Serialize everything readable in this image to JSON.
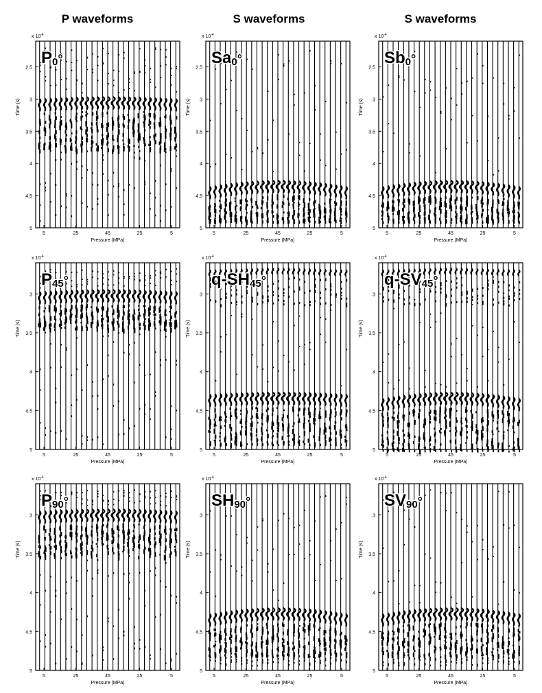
{
  "column_titles": [
    "P waveforms",
    "S waveforms",
    "S waveforms"
  ],
  "colors": {
    "trace": "#000000",
    "background": "#ffffff"
  },
  "chart_data": [
    {
      "type": "line",
      "panel": "P0",
      "label_main": "P",
      "label_sub": "0",
      "label_deg": "°",
      "exponent": "x 10",
      "exponent_power": "-4",
      "xlabel": "Pressure (MPa)",
      "ylabel": "Time (s)",
      "x_tick_labels": [
        "5",
        "25",
        "45",
        "25",
        "5"
      ],
      "ylim": [
        2.1,
        5.0
      ],
      "y_ticks": [
        2.5,
        3.0,
        3.5,
        4.0,
        4.5,
        5.0
      ],
      "y_tick_labels": [
        "2.5",
        "3",
        "3.5",
        "4",
        "4.5",
        "5"
      ],
      "traces": 27,
      "arrival": 3.03,
      "arrival_shape": "flat",
      "coda": 0.75,
      "precursor": false,
      "noise": 0.35
    },
    {
      "type": "line",
      "panel": "Sa0",
      "label_main": "Sa",
      "label_sub": "0",
      "label_deg": "°",
      "exponent": "x 10",
      "exponent_power": "-4",
      "xlabel": "Pressure (MPa)",
      "ylabel": "Time (s)",
      "x_tick_labels": [
        "5",
        "25",
        "45",
        "25",
        "5"
      ],
      "ylim": [
        2.1,
        5.0
      ],
      "y_ticks": [
        2.5,
        3.0,
        3.5,
        4.0,
        4.5,
        5.0
      ],
      "y_tick_labels": [
        "2.5",
        "3",
        "3.5",
        "4",
        "4.5",
        "5"
      ],
      "traces": 27,
      "arrival": 4.33,
      "arrival_shape": "arched",
      "coda": 0.55,
      "precursor": false,
      "noise": 0.25
    },
    {
      "type": "line",
      "panel": "Sb0",
      "label_main": "Sb",
      "label_sub": "0",
      "label_deg": "°",
      "exponent": "x 10",
      "exponent_power": "-4",
      "xlabel": "Pressure (MPa)",
      "ylabel": "Time (s)",
      "x_tick_labels": [
        "5",
        "25",
        "45",
        "25",
        "5"
      ],
      "ylim": [
        2.1,
        5.0
      ],
      "y_ticks": [
        2.5,
        3.0,
        3.5,
        4.0,
        4.5,
        5.0
      ],
      "y_tick_labels": [
        "2.5",
        "3",
        "3.5",
        "4",
        "4.5",
        "5"
      ],
      "traces": 27,
      "arrival": 4.33,
      "arrival_shape": "arched",
      "coda": 0.55,
      "precursor": false,
      "noise": 0.25
    },
    {
      "type": "line",
      "panel": "P45",
      "label_main": "P",
      "label_sub": "45",
      "label_deg": "°",
      "exponent": "x 10",
      "exponent_power": "-4",
      "xlabel": "Pressure (MPa)",
      "ylabel": "Time (s)",
      "x_tick_labels": [
        "5",
        "25",
        "45",
        "25",
        "5"
      ],
      "ylim": [
        2.6,
        5.0
      ],
      "y_ticks": [
        3.0,
        3.5,
        4.0,
        4.5,
        5.0
      ],
      "y_tick_labels": [
        "3",
        "3.5",
        "4",
        "4.5",
        "5"
      ],
      "traces": 27,
      "arrival": 3.0,
      "arrival_shape": "flat",
      "coda": 0.45,
      "precursor": false,
      "noise": 0.35
    },
    {
      "type": "line",
      "panel": "qSH45",
      "label_main": "q-SH",
      "label_sub": "45",
      "label_deg": "°",
      "exponent": "x 10",
      "exponent_power": "-4",
      "xlabel": "Pressure (MPa)",
      "ylabel": "Time (s)",
      "x_tick_labels": [
        "5",
        "25",
        "45",
        "25",
        "5"
      ],
      "ylim": [
        2.6,
        5.0
      ],
      "y_ticks": [
        3.0,
        3.5,
        4.0,
        4.5,
        5.0
      ],
      "y_tick_labels": [
        "3",
        "3.5",
        "4",
        "4.5",
        "5"
      ],
      "traces": 27,
      "arrival": 4.32,
      "arrival_shape": "flat",
      "coda": 0.6,
      "precursor": true,
      "noise": 0.25
    },
    {
      "type": "line",
      "panel": "qSV45",
      "label_main": "q-SV",
      "label_sub": "45",
      "label_deg": "°",
      "exponent": "x 10",
      "exponent_power": "-4",
      "xlabel": "Pressure (MPa)",
      "ylabel": "Time (s)",
      "x_tick_labels": [
        "5",
        "25",
        "45",
        "25",
        "5"
      ],
      "ylim": [
        2.6,
        5.0
      ],
      "y_ticks": [
        3.0,
        3.5,
        4.0,
        4.5,
        5.0
      ],
      "y_tick_labels": [
        "3",
        "3.5",
        "4",
        "4.5",
        "5"
      ],
      "traces": 27,
      "arrival": 4.32,
      "arrival_shape": "arched",
      "coda": 0.75,
      "precursor": true,
      "noise": 0.3
    },
    {
      "type": "line",
      "panel": "P90",
      "label_main": "P",
      "label_sub": "90",
      "label_deg": "°",
      "exponent": "x 10",
      "exponent_power": "-4",
      "xlabel": "Pressure (MPa)",
      "ylabel": "Time (s)",
      "x_tick_labels": [
        "5",
        "25",
        "45",
        "25",
        "5"
      ],
      "ylim": [
        2.6,
        5.0
      ],
      "y_ticks": [
        3.0,
        3.5,
        4.0,
        4.5,
        5.0
      ],
      "y_tick_labels": [
        "3",
        "3.5",
        "4",
        "4.5",
        "5"
      ],
      "traces": 27,
      "arrival": 2.98,
      "arrival_shape": "flat",
      "coda": 0.55,
      "precursor": false,
      "noise": 0.35
    },
    {
      "type": "line",
      "panel": "SH90",
      "label_main": "SH",
      "label_sub": "90",
      "label_deg": "°",
      "exponent": "x 10",
      "exponent_power": "-4",
      "xlabel": "Pressure (MPa)",
      "ylabel": "Time (s)",
      "x_tick_labels": [
        "5",
        "25",
        "45",
        "25",
        "5"
      ],
      "ylim": [
        2.6,
        5.0
      ],
      "y_ticks": [
        3.0,
        3.5,
        4.0,
        4.5,
        5.0
      ],
      "y_tick_labels": [
        "3",
        "3.5",
        "4",
        "4.5",
        "5"
      ],
      "traces": 27,
      "arrival": 4.25,
      "arrival_shape": "arched",
      "coda": 0.55,
      "precursor": false,
      "noise": 0.25
    },
    {
      "type": "line",
      "panel": "SV90",
      "label_main": "SV",
      "label_sub": "90",
      "label_deg": "°",
      "exponent": "x 10",
      "exponent_power": "-4",
      "xlabel": "Pressure (MPa)",
      "ylabel": "Time (s)",
      "x_tick_labels": [
        "5",
        "25",
        "45",
        "25",
        "5"
      ],
      "ylim": [
        2.6,
        5.0
      ],
      "y_ticks": [
        3.0,
        3.5,
        4.0,
        4.5,
        5.0
      ],
      "y_tick_labels": [
        "3",
        "3.5",
        "4",
        "4.5",
        "5"
      ],
      "traces": 27,
      "arrival": 4.25,
      "arrival_shape": "arched",
      "coda": 0.55,
      "precursor": false,
      "noise": 0.25
    }
  ]
}
